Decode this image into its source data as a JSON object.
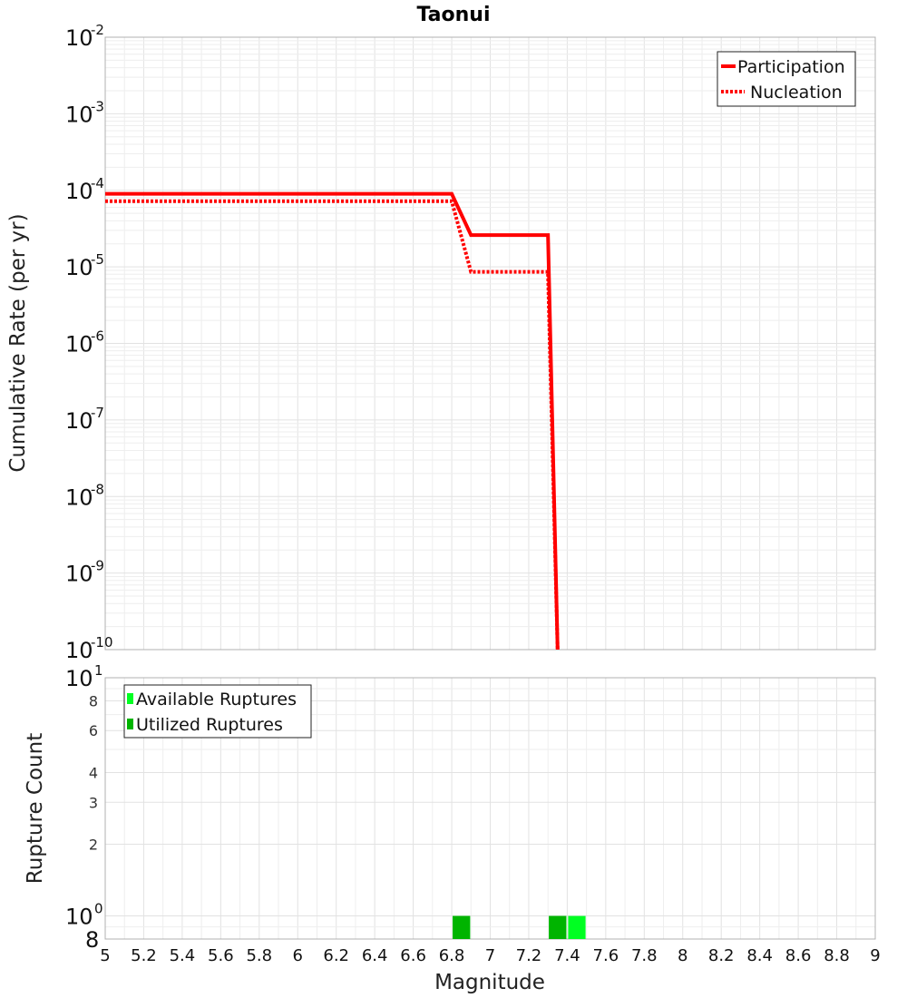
{
  "chart_data": [
    {
      "type": "line",
      "title": "Taonui",
      "xlabel": "Magnitude",
      "ylabel": "Cumulative Rate (per yr)",
      "yscale": "log",
      "ylim_exponents": [
        -10,
        -2
      ],
      "xlim": [
        5,
        9
      ],
      "x_ticks": [
        "5",
        "5.2",
        "5.4",
        "5.6",
        "5.8",
        "6",
        "6.2",
        "6.4",
        "6.6",
        "6.8",
        "7",
        "7.2",
        "7.4",
        "7.6",
        "7.8",
        "8",
        "8.2",
        "8.4",
        "8.6",
        "8.8",
        "9"
      ],
      "y_tick_exponents": [
        "-2",
        "-3",
        "-4",
        "-5",
        "-6",
        "-7",
        "-8",
        "-9",
        "-10"
      ],
      "y_tick_base": "10",
      "legend_position": "top-right",
      "series": [
        {
          "name": "Participation",
          "style": "solid",
          "color": "#ff0000",
          "x": [
            5.0,
            6.8,
            6.9,
            7.3,
            7.35
          ],
          "y": [
            9e-05,
            9e-05,
            2.6e-05,
            2.6e-05,
            1e-10
          ]
        },
        {
          "name": "Nucleation",
          "style": "dotted",
          "color": "#ff0000",
          "x": [
            5.0,
            6.8,
            6.9,
            7.3,
            7.35
          ],
          "y": [
            7.2e-05,
            7.2e-05,
            8.6e-06,
            8.6e-06,
            1e-10
          ]
        }
      ]
    },
    {
      "type": "bar",
      "xlabel": "Magnitude",
      "ylabel": "Rupture Count",
      "yscale": "log",
      "ylim": [
        0.8,
        10
      ],
      "xlim": [
        5,
        9
      ],
      "y_tick_labels": [
        "8",
        "6",
        "4",
        "3",
        "2"
      ],
      "y_tick_big": {
        "bottom": "8",
        "one": "10",
        "one_exp": "0",
        "ten": "10",
        "ten_exp": "1"
      },
      "legend_position": "top-left",
      "series": [
        {
          "name": "Available Ruptures",
          "color": "#00ff22",
          "bins": [
            6.85,
            7.35,
            7.45
          ],
          "values": [
            1,
            1,
            1
          ]
        },
        {
          "name": "Utilized Ruptures",
          "color": "#00b400",
          "bins": [
            6.85,
            7.35
          ],
          "values": [
            1,
            1
          ]
        }
      ]
    }
  ]
}
